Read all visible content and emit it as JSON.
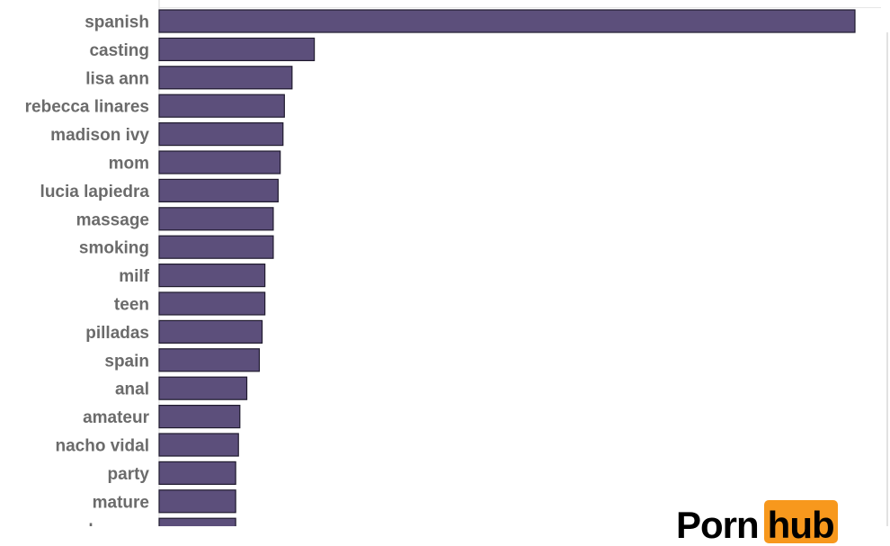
{
  "chart_data": {
    "type": "bar",
    "orientation": "horizontal",
    "categories": [
      "spanish",
      "casting",
      "lisa ann",
      "rebecca linares",
      "madison ivy",
      "mom",
      "lucia lapiedra",
      "massage",
      "smoking",
      "milf",
      "teen",
      "pilladas",
      "spain",
      "anal",
      "amateur",
      "nacho vidal",
      "party",
      "mature",
      "sasha grey"
    ],
    "values": [
      100,
      22.3,
      19.1,
      18.0,
      17.8,
      17.4,
      17.1,
      16.4,
      16.4,
      15.2,
      15.2,
      14.8,
      14.4,
      12.6,
      11.6,
      11.4,
      11.0,
      11.0,
      11.0
    ],
    "title": "",
    "xlabel": "",
    "ylabel": "",
    "xlim": [
      0,
      100
    ],
    "grid": false,
    "legend": "none",
    "bar_color": "#5c4f7b",
    "bar_border_color": "#1f1a2e",
    "label_color": "#6b6b6b"
  },
  "logo": {
    "left_text": "Porn",
    "right_text": "hub",
    "left_color": "#000000",
    "right_bg": "#f7981d"
  }
}
